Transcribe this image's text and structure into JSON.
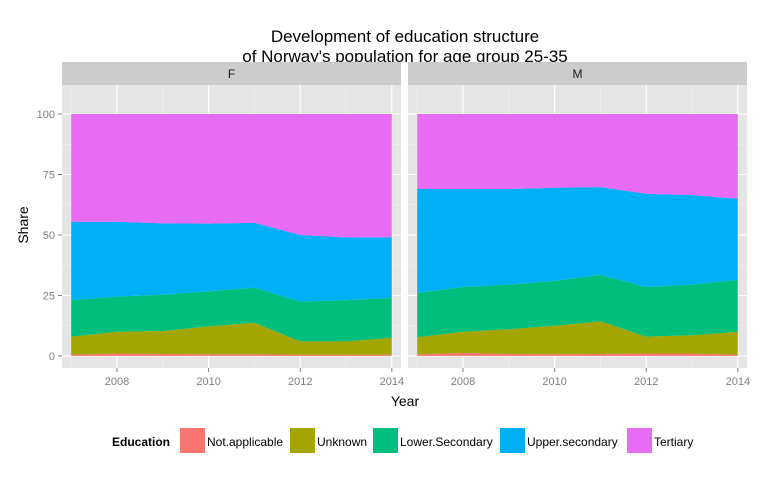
{
  "chart_data": {
    "type": "area",
    "stacked": true,
    "title": "Development of education structure\nof Norway's population for age group 25-35",
    "title_lines": [
      "Development of education structure",
      "of Norway's population for age group 25-35"
    ],
    "xlabel": "Year",
    "ylabel": "Share",
    "xlim": [
      2006.8,
      2014.2
    ],
    "ylim": [
      -5,
      112
    ],
    "x_ticks": [
      2008,
      2010,
      2012,
      2014
    ],
    "y_ticks": [
      0,
      25,
      50,
      75,
      100
    ],
    "grid": true,
    "legend_position": "bottom",
    "legend_title": "Education",
    "series_names": [
      "Not.applicable",
      "Unknown",
      "Lower.Secondary",
      "Upper.secondary",
      "Tertiary"
    ],
    "colors": {
      "Not.applicable": "#F8766D",
      "Unknown": "#A3A500",
      "Lower.Secondary": "#00BF7D",
      "Upper.secondary": "#00B0F6",
      "Tertiary": "#E76BF3",
      "panel_bg": "#E5E5E5",
      "strip_bg": "#CCCCCC"
    },
    "x": [
      2007,
      2008,
      2009,
      2010,
      2011,
      2012,
      2013,
      2014
    ],
    "panels": [
      {
        "label": "F",
        "series": [
          {
            "name": "Not.applicable",
            "values": [
              0.5,
              1.0,
              0.8,
              0.7,
              0.7,
              0.5,
              0.5,
              0.5
            ]
          },
          {
            "name": "Unknown",
            "values": [
              7.5,
              9.0,
              9.5,
              11.5,
              13.0,
              5.5,
              5.5,
              7.0
            ]
          },
          {
            "name": "Lower.Secondary",
            "values": [
              15.0,
              14.5,
              15.0,
              14.5,
              14.5,
              16.5,
              17.0,
              16.5
            ]
          },
          {
            "name": "Upper.secondary",
            "values": [
              32.5,
              31.0,
              29.5,
              28.0,
              26.8,
              27.5,
              26.0,
              25.0
            ]
          },
          {
            "name": "Tertiary",
            "values": [
              44.5,
              44.5,
              45.2,
              45.3,
              45.0,
              50.0,
              51.0,
              51.0
            ]
          }
        ]
      },
      {
        "label": "M",
        "series": [
          {
            "name": "Not.applicable",
            "values": [
              0.7,
              1.2,
              0.8,
              0.7,
              0.8,
              1.0,
              1.0,
              0.5
            ]
          },
          {
            "name": "Unknown",
            "values": [
              7.0,
              8.8,
              10.2,
              11.8,
              13.5,
              7.0,
              7.5,
              9.5
            ]
          },
          {
            "name": "Lower.Secondary",
            "values": [
              18.3,
              18.5,
              18.5,
              18.5,
              19.2,
              20.5,
              21.0,
              21.5
            ]
          },
          {
            "name": "Upper.secondary",
            "values": [
              43.0,
              40.5,
              39.5,
              38.5,
              36.3,
              38.5,
              37.0,
              33.5
            ]
          },
          {
            "name": "Tertiary",
            "values": [
              31.0,
              31.0,
              31.0,
              30.5,
              30.2,
              33.0,
              33.5,
              35.0
            ]
          }
        ]
      }
    ]
  }
}
